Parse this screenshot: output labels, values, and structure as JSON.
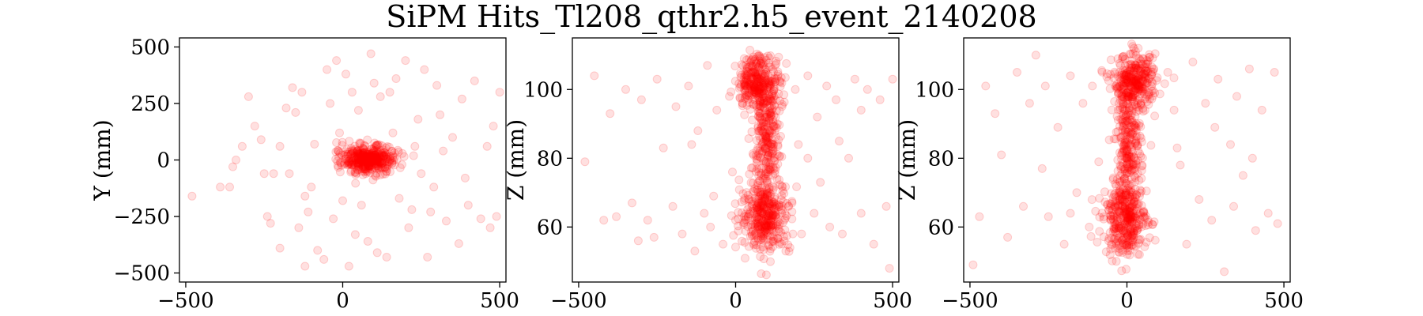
{
  "title": "SiPM Hits_Tl208_qthr2.h5_event_2140208",
  "marker_color": "#ff0000",
  "marker_alpha": 0.12,
  "chart_data": [
    {
      "type": "scatter",
      "xlabel": "",
      "ylabel": "Y (mm)",
      "xlim": [
        -520,
        520
      ],
      "ylim": [
        -540,
        540
      ],
      "xticks": [
        -500,
        0,
        500
      ],
      "xtick_labels": [
        "−500",
        "0",
        "500"
      ],
      "yticks": [
        500,
        250,
        0,
        -250,
        -500
      ],
      "ytick_labels": [
        "500",
        "250",
        "0",
        "−250",
        "−500"
      ],
      "grid": false,
      "clusters": [
        {
          "center": [
            80,
            0
          ],
          "spread": [
            45,
            30
          ],
          "count": 420
        }
      ],
      "background_points": [
        [
          -480,
          -160
        ],
        [
          -390,
          -120
        ],
        [
          -360,
          -120
        ],
        [
          -340,
          0
        ],
        [
          -320,
          60
        ],
        [
          -300,
          280
        ],
        [
          -260,
          90
        ],
        [
          -250,
          -60
        ],
        [
          -240,
          -250
        ],
        [
          -230,
          -280
        ],
        [
          -220,
          -60
        ],
        [
          -200,
          60
        ],
        [
          -180,
          230
        ],
        [
          -170,
          -60
        ],
        [
          -160,
          320
        ],
        [
          -150,
          210
        ],
        [
          -140,
          -300
        ],
        [
          -130,
          300
        ],
        [
          -120,
          -160
        ],
        [
          -110,
          -230
        ],
        [
          -100,
          -120
        ],
        [
          -90,
          70
        ],
        [
          -80,
          -400
        ],
        [
          -60,
          -440
        ],
        [
          -50,
          400
        ],
        [
          -40,
          250
        ],
        [
          -30,
          -260
        ],
        [
          -20,
          440
        ],
        [
          0,
          -180
        ],
        [
          10,
          380
        ],
        [
          30,
          300
        ],
        [
          40,
          -330
        ],
        [
          50,
          220
        ],
        [
          60,
          -200
        ],
        [
          80,
          -360
        ],
        [
          90,
          470
        ],
        [
          100,
          340
        ],
        [
          110,
          -410
        ],
        [
          120,
          280
        ],
        [
          140,
          -430
        ],
        [
          150,
          300
        ],
        [
          170,
          360
        ],
        [
          180,
          -170
        ],
        [
          200,
          440
        ],
        [
          210,
          -300
        ],
        [
          220,
          -220
        ],
        [
          240,
          180
        ],
        [
          250,
          -60
        ],
        [
          260,
          400
        ],
        [
          280,
          -230
        ],
        [
          290,
          -120
        ],
        [
          300,
          330
        ],
        [
          320,
          40
        ],
        [
          330,
          -270
        ],
        [
          350,
          100
        ],
        [
          370,
          -370
        ],
        [
          380,
          270
        ],
        [
          390,
          -80
        ],
        [
          400,
          -200
        ],
        [
          420,
          350
        ],
        [
          440,
          -260
        ],
        [
          460,
          60
        ],
        [
          470,
          -300
        ],
        [
          480,
          150
        ],
        [
          490,
          -250
        ],
        [
          500,
          300
        ],
        [
          -280,
          150
        ],
        [
          -200,
          -390
        ],
        [
          -10,
          120
        ],
        [
          160,
          120
        ],
        [
          230,
          60
        ],
        [
          310,
          200
        ],
        [
          -350,
          -30
        ],
        [
          -120,
          -470
        ],
        [
          270,
          -430
        ],
        [
          20,
          -470
        ]
      ]
    },
    {
      "type": "scatter",
      "xlabel": "",
      "ylabel": "Z (mm)",
      "xlim": [
        -520,
        520
      ],
      "ylim": [
        44,
        115
      ],
      "xticks": [
        -500,
        0,
        500
      ],
      "xtick_labels": [
        "−500",
        "0",
        "500"
      ],
      "yticks": [
        100,
        80,
        60
      ],
      "ytick_labels": [
        "100",
        "80",
        "60"
      ],
      "grid": false,
      "clusters": [
        {
          "center": [
            75,
            102
          ],
          "spread": [
            35,
            4
          ],
          "count": 320
        },
        {
          "center": [
            95,
            83
          ],
          "spread": [
            22,
            9
          ],
          "count": 260
        },
        {
          "center": [
            95,
            63
          ],
          "spread": [
            40,
            5
          ],
          "count": 340
        }
      ],
      "background_points": [
        [
          -480,
          79
        ],
        [
          -450,
          104
        ],
        [
          -400,
          93
        ],
        [
          -380,
          63
        ],
        [
          -350,
          100
        ],
        [
          -330,
          67
        ],
        [
          -310,
          56
        ],
        [
          -300,
          97
        ],
        [
          -280,
          62
        ],
        [
          -250,
          103
        ],
        [
          -230,
          83
        ],
        [
          -200,
          66
        ],
        [
          -190,
          95
        ],
        [
          -170,
          58
        ],
        [
          -150,
          101
        ],
        [
          -130,
          53
        ],
        [
          -120,
          88
        ],
        [
          -100,
          64
        ],
        [
          -90,
          107
        ],
        [
          -80,
          60
        ],
        [
          -60,
          94
        ],
        [
          -40,
          55
        ],
        [
          -20,
          98
        ],
        [
          -10,
          76
        ],
        [
          0,
          62
        ],
        [
          160,
          53
        ],
        [
          180,
          67
        ],
        [
          190,
          100
        ],
        [
          200,
          84
        ],
        [
          210,
          58
        ],
        [
          230,
          104
        ],
        [
          250,
          64
        ],
        [
          260,
          92
        ],
        [
          270,
          73
        ],
        [
          290,
          101
        ],
        [
          300,
          60
        ],
        [
          320,
          97
        ],
        [
          340,
          58
        ],
        [
          360,
          80
        ],
        [
          380,
          103
        ],
        [
          400,
          64
        ],
        [
          420,
          100
        ],
        [
          440,
          55
        ],
        [
          460,
          97
        ],
        [
          480,
          66
        ],
        [
          490,
          48
        ],
        [
          500,
          103
        ],
        [
          -260,
          57
        ],
        [
          -140,
          84
        ],
        [
          330,
          85
        ],
        [
          -420,
          62
        ],
        [
          230,
          80
        ],
        [
          -70,
          69
        ],
        [
          400,
          94
        ]
      ]
    },
    {
      "type": "scatter",
      "xlabel": "",
      "ylabel": "Z (mm)",
      "xlim": [
        -520,
        520
      ],
      "ylim": [
        44,
        115
      ],
      "xticks": [
        -500,
        0,
        500
      ],
      "xtick_labels": [
        "−500",
        "0",
        "500"
      ],
      "yticks": [
        100,
        80,
        60
      ],
      "ytick_labels": [
        "100",
        "80",
        "60"
      ],
      "grid": false,
      "clusters": [
        {
          "center": [
            25,
            102
          ],
          "spread": [
            35,
            4
          ],
          "count": 320
        },
        {
          "center": [
            5,
            83
          ],
          "spread": [
            20,
            9
          ],
          "count": 260
        },
        {
          "center": [
            -5,
            62
          ],
          "spread": [
            35,
            5
          ],
          "count": 340
        }
      ],
      "background_points": [
        [
          -490,
          49
        ],
        [
          -470,
          63
        ],
        [
          -450,
          101
        ],
        [
          -420,
          93
        ],
        [
          -400,
          81
        ],
        [
          -380,
          57
        ],
        [
          -350,
          105
        ],
        [
          -330,
          66
        ],
        [
          -310,
          96
        ],
        [
          -290,
          110
        ],
        [
          -270,
          77
        ],
        [
          -250,
          63
        ],
        [
          -220,
          89
        ],
        [
          -200,
          55
        ],
        [
          -180,
          104
        ],
        [
          -160,
          70
        ],
        [
          -140,
          96
        ],
        [
          -120,
          60
        ],
        [
          -110,
          101
        ],
        [
          -90,
          79
        ],
        [
          130,
          105
        ],
        [
          150,
          94
        ],
        [
          170,
          78
        ],
        [
          190,
          55
        ],
        [
          210,
          108
        ],
        [
          230,
          68
        ],
        [
          250,
          96
        ],
        [
          270,
          62
        ],
        [
          290,
          103
        ],
        [
          310,
          47
        ],
        [
          330,
          84
        ],
        [
          340,
          66
        ],
        [
          350,
          98
        ],
        [
          370,
          75
        ],
        [
          390,
          106
        ],
        [
          410,
          59
        ],
        [
          430,
          94
        ],
        [
          450,
          64
        ],
        [
          470,
          105
        ],
        [
          480,
          61
        ],
        [
          -260,
          101
        ],
        [
          -40,
          66
        ],
        [
          160,
          83
        ],
        [
          400,
          80
        ],
        [
          -180,
          64
        ],
        [
          280,
          89
        ]
      ]
    }
  ]
}
